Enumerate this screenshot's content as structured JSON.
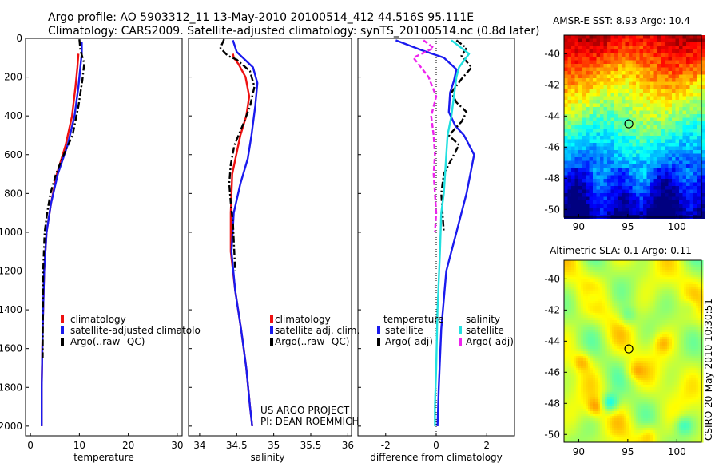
{
  "header": {
    "line1": "Argo profile: AO 5903312_11 13-May-2010 20100514_412 44.516S 95.111E",
    "line2": "Climatology: CARS2009. Satellite-adjusted climatology: synTS_20100514.nc (0.8d later)"
  },
  "credits": {
    "project": "US ARGO PROJECT",
    "pi": "PI: DEAN ROEMMICH",
    "side": "CSIRO 20-May-2010 10:30:51"
  },
  "colors": {
    "climatology": "#ee1111",
    "satellite": "#1a1aee",
    "argo": "#000000",
    "salinity_satellite": "#22e0e0",
    "salinity_argo": "#ee22ee"
  },
  "chart_data": [
    {
      "type": "line",
      "xlabel": "temperature",
      "ylabel": "",
      "xlim": [
        -1,
        31
      ],
      "ylim": [
        2050,
        0
      ],
      "y_reversed": true,
      "xticks": [
        0,
        10,
        20,
        30
      ],
      "yticks": [
        0,
        200,
        400,
        600,
        800,
        1000,
        1200,
        1400,
        1600,
        1800,
        2000
      ],
      "legend": [
        "climatology",
        "satellite-adjusted climatolo",
        "Argo(..raw -QC)"
      ],
      "legend_position": "bottom-right",
      "series": [
        {
          "name": "climatology",
          "style": "solid",
          "x": [
            9.8,
            9.6,
            9.2,
            8.5,
            7.2,
            5.4,
            4.2,
            3.3,
            2.8,
            2.5,
            2.3,
            2.3
          ],
          "y": [
            80,
            150,
            250,
            400,
            550,
            700,
            850,
            1000,
            1200,
            1500,
            1800,
            2000
          ]
        },
        {
          "name": "satellite-adjusted climatolo",
          "style": "solid",
          "x": [
            10.5,
            10.5,
            10.2,
            9.8,
            9.0,
            7.6,
            5.6,
            4.2,
            3.3,
            2.8,
            2.5,
            2.3,
            2.3
          ],
          "y": [
            20,
            80,
            150,
            250,
            400,
            550,
            700,
            850,
            1000,
            1200,
            1500,
            1800,
            2000
          ]
        },
        {
          "name": "Argo(..raw -QC)",
          "style": "dashdot",
          "x": [
            10.0,
            10.2,
            11.0,
            10.6,
            9.8,
            8.6,
            6.8,
            5.2,
            4.1,
            3.4,
            2.9,
            2.6,
            2.5
          ],
          "y": [
            5,
            60,
            130,
            220,
            350,
            500,
            600,
            700,
            800,
            900,
            1000,
            1200,
            1650
          ]
        }
      ]
    },
    {
      "type": "line",
      "xlabel": "salinity",
      "ylabel": "",
      "xlim": [
        33.85,
        36.05
      ],
      "ylim": [
        2050,
        0
      ],
      "y_reversed": true,
      "xticks": [
        34,
        34.5,
        35,
        35.5,
        36
      ],
      "xtick_labels": [
        "34",
        "34.5",
        "35",
        "35.5",
        "36"
      ],
      "legend": [
        "climatology",
        "satellite adj. clim.",
        "Argo(..raw -QC)"
      ],
      "legend_position": "bottom-right",
      "series": [
        {
          "name": "climatology",
          "style": "solid",
          "x": [
            34.45,
            34.46,
            34.52,
            34.62,
            34.67,
            34.63,
            34.55,
            34.44,
            34.42,
            34.42,
            34.48,
            34.56,
            34.63,
            34.68,
            34.71
          ],
          "y": [
            80,
            100,
            130,
            200,
            300,
            400,
            500,
            700,
            900,
            1100,
            1300,
            1500,
            1700,
            1900,
            2000
          ]
        },
        {
          "name": "satellite adj. clim.",
          "style": "solid",
          "x": [
            34.45,
            34.5,
            34.72,
            34.78,
            34.75,
            34.7,
            34.65,
            34.55,
            34.46,
            34.43,
            34.48,
            34.56,
            34.63,
            34.68,
            34.71
          ],
          "y": [
            10,
            70,
            150,
            230,
            350,
            500,
            620,
            750,
            900,
            1100,
            1300,
            1500,
            1700,
            1900,
            2000
          ]
        },
        {
          "name": "Argo(..raw -QC)",
          "style": "dashdot",
          "x": [
            34.33,
            34.28,
            34.38,
            34.5,
            34.68,
            34.74,
            34.68,
            34.58,
            34.47,
            34.42,
            34.4,
            34.42,
            34.45,
            34.48
          ],
          "y": [
            5,
            50,
            90,
            110,
            170,
            250,
            350,
            450,
            550,
            650,
            750,
            850,
            950,
            1200
          ]
        }
      ]
    },
    {
      "type": "line",
      "xlabel": "difference from climatology",
      "ylabel": "",
      "xlim": [
        -3.1,
        3.1
      ],
      "ylim": [
        2050,
        0
      ],
      "y_reversed": true,
      "xticks": [
        -2,
        0,
        2
      ],
      "zero_line": "dotted",
      "legend_titles": [
        "temperature",
        "salinity"
      ],
      "legend": [
        "satellite",
        "Argo(-adj)",
        "satellite",
        "Argo(-adj)"
      ],
      "legend_position": "bottom",
      "series": [
        {
          "name": "satellite",
          "group": "temperature",
          "color_key": "satellite",
          "style": "solid",
          "x": [
            -1.6,
            -1.2,
            -0.6,
            0.3,
            0.8,
            0.7,
            0.55,
            0.5,
            0.75,
            1.1,
            1.5,
            1.35,
            1.2,
            1.0,
            0.8,
            0.4,
            0.2,
            0.1,
            0.05
          ],
          "y": [
            10,
            30,
            60,
            100,
            160,
            220,
            280,
            380,
            450,
            500,
            600,
            700,
            800,
            900,
            1000,
            1200,
            1500,
            1800,
            2000
          ]
        },
        {
          "name": "Argo(-adj)",
          "group": "temperature",
          "color_key": "argo",
          "style": "dashdot",
          "x": [
            0.8,
            1.2,
            1.0,
            1.4,
            1.0,
            0.6,
            0.8,
            1.2,
            1.0,
            0.5,
            0.9,
            0.7,
            0.3,
            0.2,
            0.3
          ],
          "y": [
            10,
            50,
            90,
            150,
            210,
            280,
            330,
            380,
            430,
            500,
            550,
            600,
            700,
            800,
            1000
          ]
        },
        {
          "name": "satellite",
          "group": "salinity",
          "color_key": "salinity_satellite",
          "style": "solid",
          "x": [
            0.6,
            1.3,
            0.9,
            0.8,
            0.7,
            0.6,
            0.45,
            0.4,
            0.35,
            0.3,
            0.2,
            0.15,
            0.05,
            0.0,
            -0.05,
            -0.05
          ],
          "y": [
            10,
            80,
            150,
            200,
            300,
            400,
            500,
            600,
            700,
            800,
            900,
            1100,
            1400,
            1700,
            1900,
            2000
          ]
        },
        {
          "name": "Argo(-adj)",
          "group": "salinity",
          "color_key": "salinity_argo",
          "style": "dashed",
          "x": [
            -0.5,
            -0.1,
            -0.9,
            -0.3,
            0.0,
            -0.2,
            -0.1,
            -0.05,
            -0.1,
            -0.05,
            0.0,
            -0.05
          ],
          "y": [
            10,
            50,
            100,
            200,
            300,
            400,
            500,
            600,
            700,
            800,
            900,
            1000
          ]
        }
      ]
    },
    {
      "type": "heatmap",
      "title": "AMSR-E SST: 8.93 Argo: 10.4",
      "xlim": [
        88.5,
        102.5
      ],
      "ylim": [
        -50.5,
        -38.8
      ],
      "xticks": [
        90,
        95,
        100
      ],
      "yticks": [
        -40,
        -42,
        -44,
        -46,
        -48,
        -50
      ],
      "colormap": "jet",
      "pattern": "warm in north, cold in south",
      "marker": {
        "x": 95.1,
        "y": -44.5
      }
    },
    {
      "type": "heatmap",
      "title": "Altimetric SLA: 0.1 Argo: 0.11",
      "xlim": [
        88.5,
        102.5
      ],
      "ylim": [
        -50.5,
        -38.8
      ],
      "xticks": [
        90,
        95,
        100
      ],
      "yticks": [
        -40,
        -42,
        -44,
        -46,
        -48,
        -50
      ],
      "colormap": "jet",
      "pattern": "mostly near zero with scattered eddies",
      "marker": {
        "x": 95.1,
        "y": -44.5
      }
    }
  ]
}
